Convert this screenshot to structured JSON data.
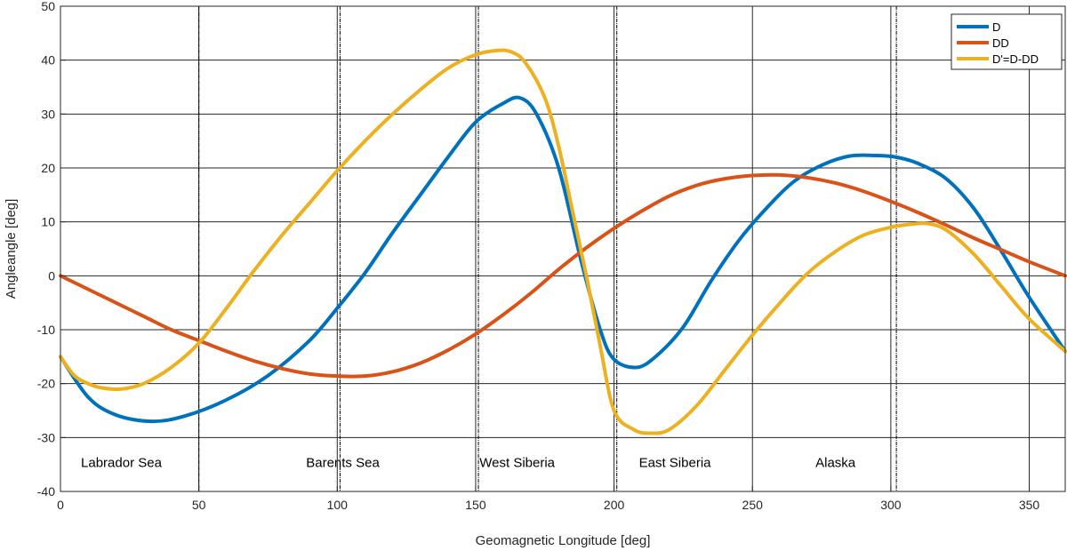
{
  "chart_data": {
    "type": "line",
    "title": "",
    "xlabel": "Geomagnetic Longitude [deg]",
    "ylabel": "Angleangle [deg]",
    "xlim": [
      0,
      363
    ],
    "ylim": [
      -40,
      50
    ],
    "xticks": [
      0,
      50,
      100,
      150,
      200,
      250,
      300,
      350
    ],
    "yticks": [
      -40,
      -30,
      -20,
      -10,
      0,
      10,
      20,
      30,
      40,
      50
    ],
    "grid": true,
    "legend_position": "top-right",
    "region_boundaries": [
      50,
      101,
      151,
      201,
      302
    ],
    "regions": [
      {
        "label": "Labrador Sea",
        "x": 22,
        "y": -35.5
      },
      {
        "label": "Barents Sea",
        "x": 102,
        "y": -35.5
      },
      {
        "label": "West Siberia",
        "x": 165,
        "y": -35.5
      },
      {
        "label": "East Siberia",
        "x": 222,
        "y": -35.5
      },
      {
        "label": "Alaska",
        "x": 280,
        "y": -35.5
      }
    ],
    "series": [
      {
        "name": "D",
        "color": "#0072BD",
        "x": [
          0,
          10,
          20,
          33,
          45,
          60,
          75,
          90,
          100,
          110,
          120,
          130,
          140,
          150,
          160,
          166,
          172,
          180,
          188,
          195,
          200,
          208,
          215,
          225,
          235,
          245,
          255,
          265,
          275,
          285,
          295,
          302,
          310,
          320,
          330,
          340,
          350,
          363
        ],
        "y": [
          -15,
          -22.5,
          -25.8,
          -27,
          -26,
          -23,
          -18.5,
          -12,
          -6,
          0.5,
          8,
          15,
          22,
          28.5,
          32,
          33,
          30,
          20,
          3,
          -10,
          -15.5,
          -17,
          -15,
          -9.5,
          -1,
          6.5,
          12.5,
          17.5,
          20.5,
          22.2,
          22.3,
          22,
          20.8,
          18,
          12.5,
          4.5,
          -4,
          -14
        ]
      },
      {
        "name": "DD",
        "color": "#D95319",
        "x": [
          0,
          10,
          20,
          30,
          40,
          50,
          60,
          70,
          80,
          90,
          100,
          110,
          120,
          130,
          140,
          150,
          160,
          170,
          180,
          190,
          200,
          210,
          220,
          230,
          240,
          250,
          260,
          270,
          280,
          290,
          300,
          310,
          320,
          330,
          340,
          350,
          363
        ],
        "y": [
          0,
          -2.5,
          -5,
          -7.5,
          -10,
          -12,
          -14,
          -15.8,
          -17.2,
          -18.2,
          -18.6,
          -18.6,
          -17.8,
          -16.2,
          -13.8,
          -10.8,
          -7.2,
          -3.2,
          1.2,
          5.2,
          8.8,
          12,
          14.8,
          16.8,
          18,
          18.6,
          18.7,
          18.2,
          17.2,
          15.7,
          13.8,
          11.7,
          9.4,
          7,
          4.8,
          2.6,
          0
        ]
      },
      {
        "name": "D'=D-DD",
        "color": "#EDB120",
        "x": [
          0,
          5,
          10,
          15,
          22,
          30,
          40,
          50,
          60,
          70,
          80,
          90,
          100,
          110,
          120,
          130,
          140,
          150,
          158,
          163,
          168,
          175,
          180,
          185,
          190,
          195,
          200,
          207,
          213,
          220,
          230,
          240,
          250,
          260,
          270,
          280,
          290,
          300,
          308,
          313,
          320,
          330,
          340,
          350,
          363
        ],
        "y": [
          -15,
          -18.5,
          -20,
          -20.8,
          -21,
          -20,
          -17,
          -12.5,
          -6,
          1,
          7.5,
          13.5,
          19.5,
          25,
          30,
          34.5,
          38.5,
          41,
          41.8,
          41.5,
          39.5,
          33,
          24,
          12,
          0,
          -13,
          -25,
          -28.5,
          -29.2,
          -28.5,
          -24,
          -17.5,
          -11,
          -5,
          0.5,
          4.5,
          7.5,
          9,
          9.6,
          9.7,
          8.5,
          4,
          -2,
          -8,
          -14
        ]
      }
    ]
  }
}
